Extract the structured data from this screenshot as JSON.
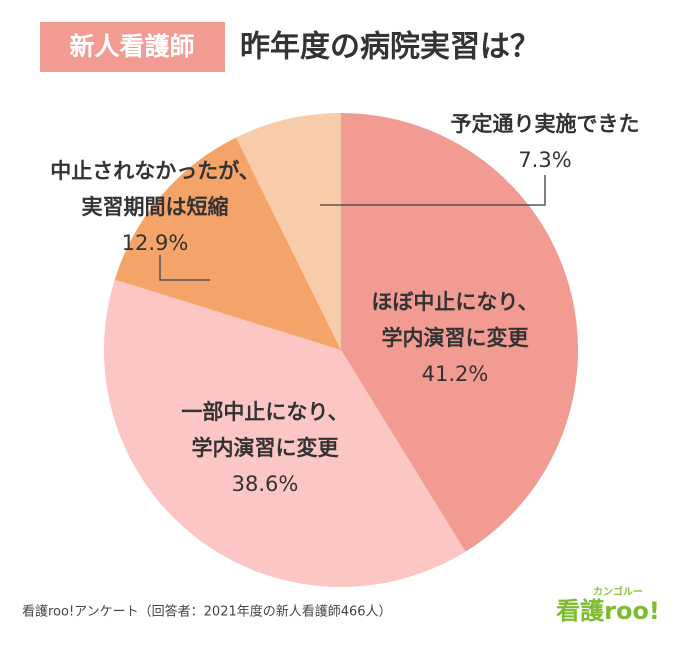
{
  "badge": "新人看護師",
  "chart_data": {
    "type": "pie",
    "title": "昨年度の病院実習は？",
    "categories": [
      [
        "ほぼ中止になり、",
        "学内演習に変更"
      ],
      [
        "一部中止になり、",
        "学内演習に変更"
      ],
      [
        "中止されなかったが、",
        "実習期間は短縮"
      ],
      [
        "予定通り実施できた"
      ]
    ],
    "values": [
      41.2,
      38.6,
      12.9,
      7.3
    ],
    "value_labels": [
      "41.2%",
      "38.6%",
      "12.9%",
      "7.3%"
    ],
    "colors": [
      "#f29b93",
      "#fbc6c3",
      "#f4a468",
      "#f8cba9"
    ]
  },
  "source": "看護roo!アンケート（回答者：2021年度の新人看護師466人）",
  "logo": {
    "text": "看護roo!",
    "sub": "カンゴルー"
  }
}
